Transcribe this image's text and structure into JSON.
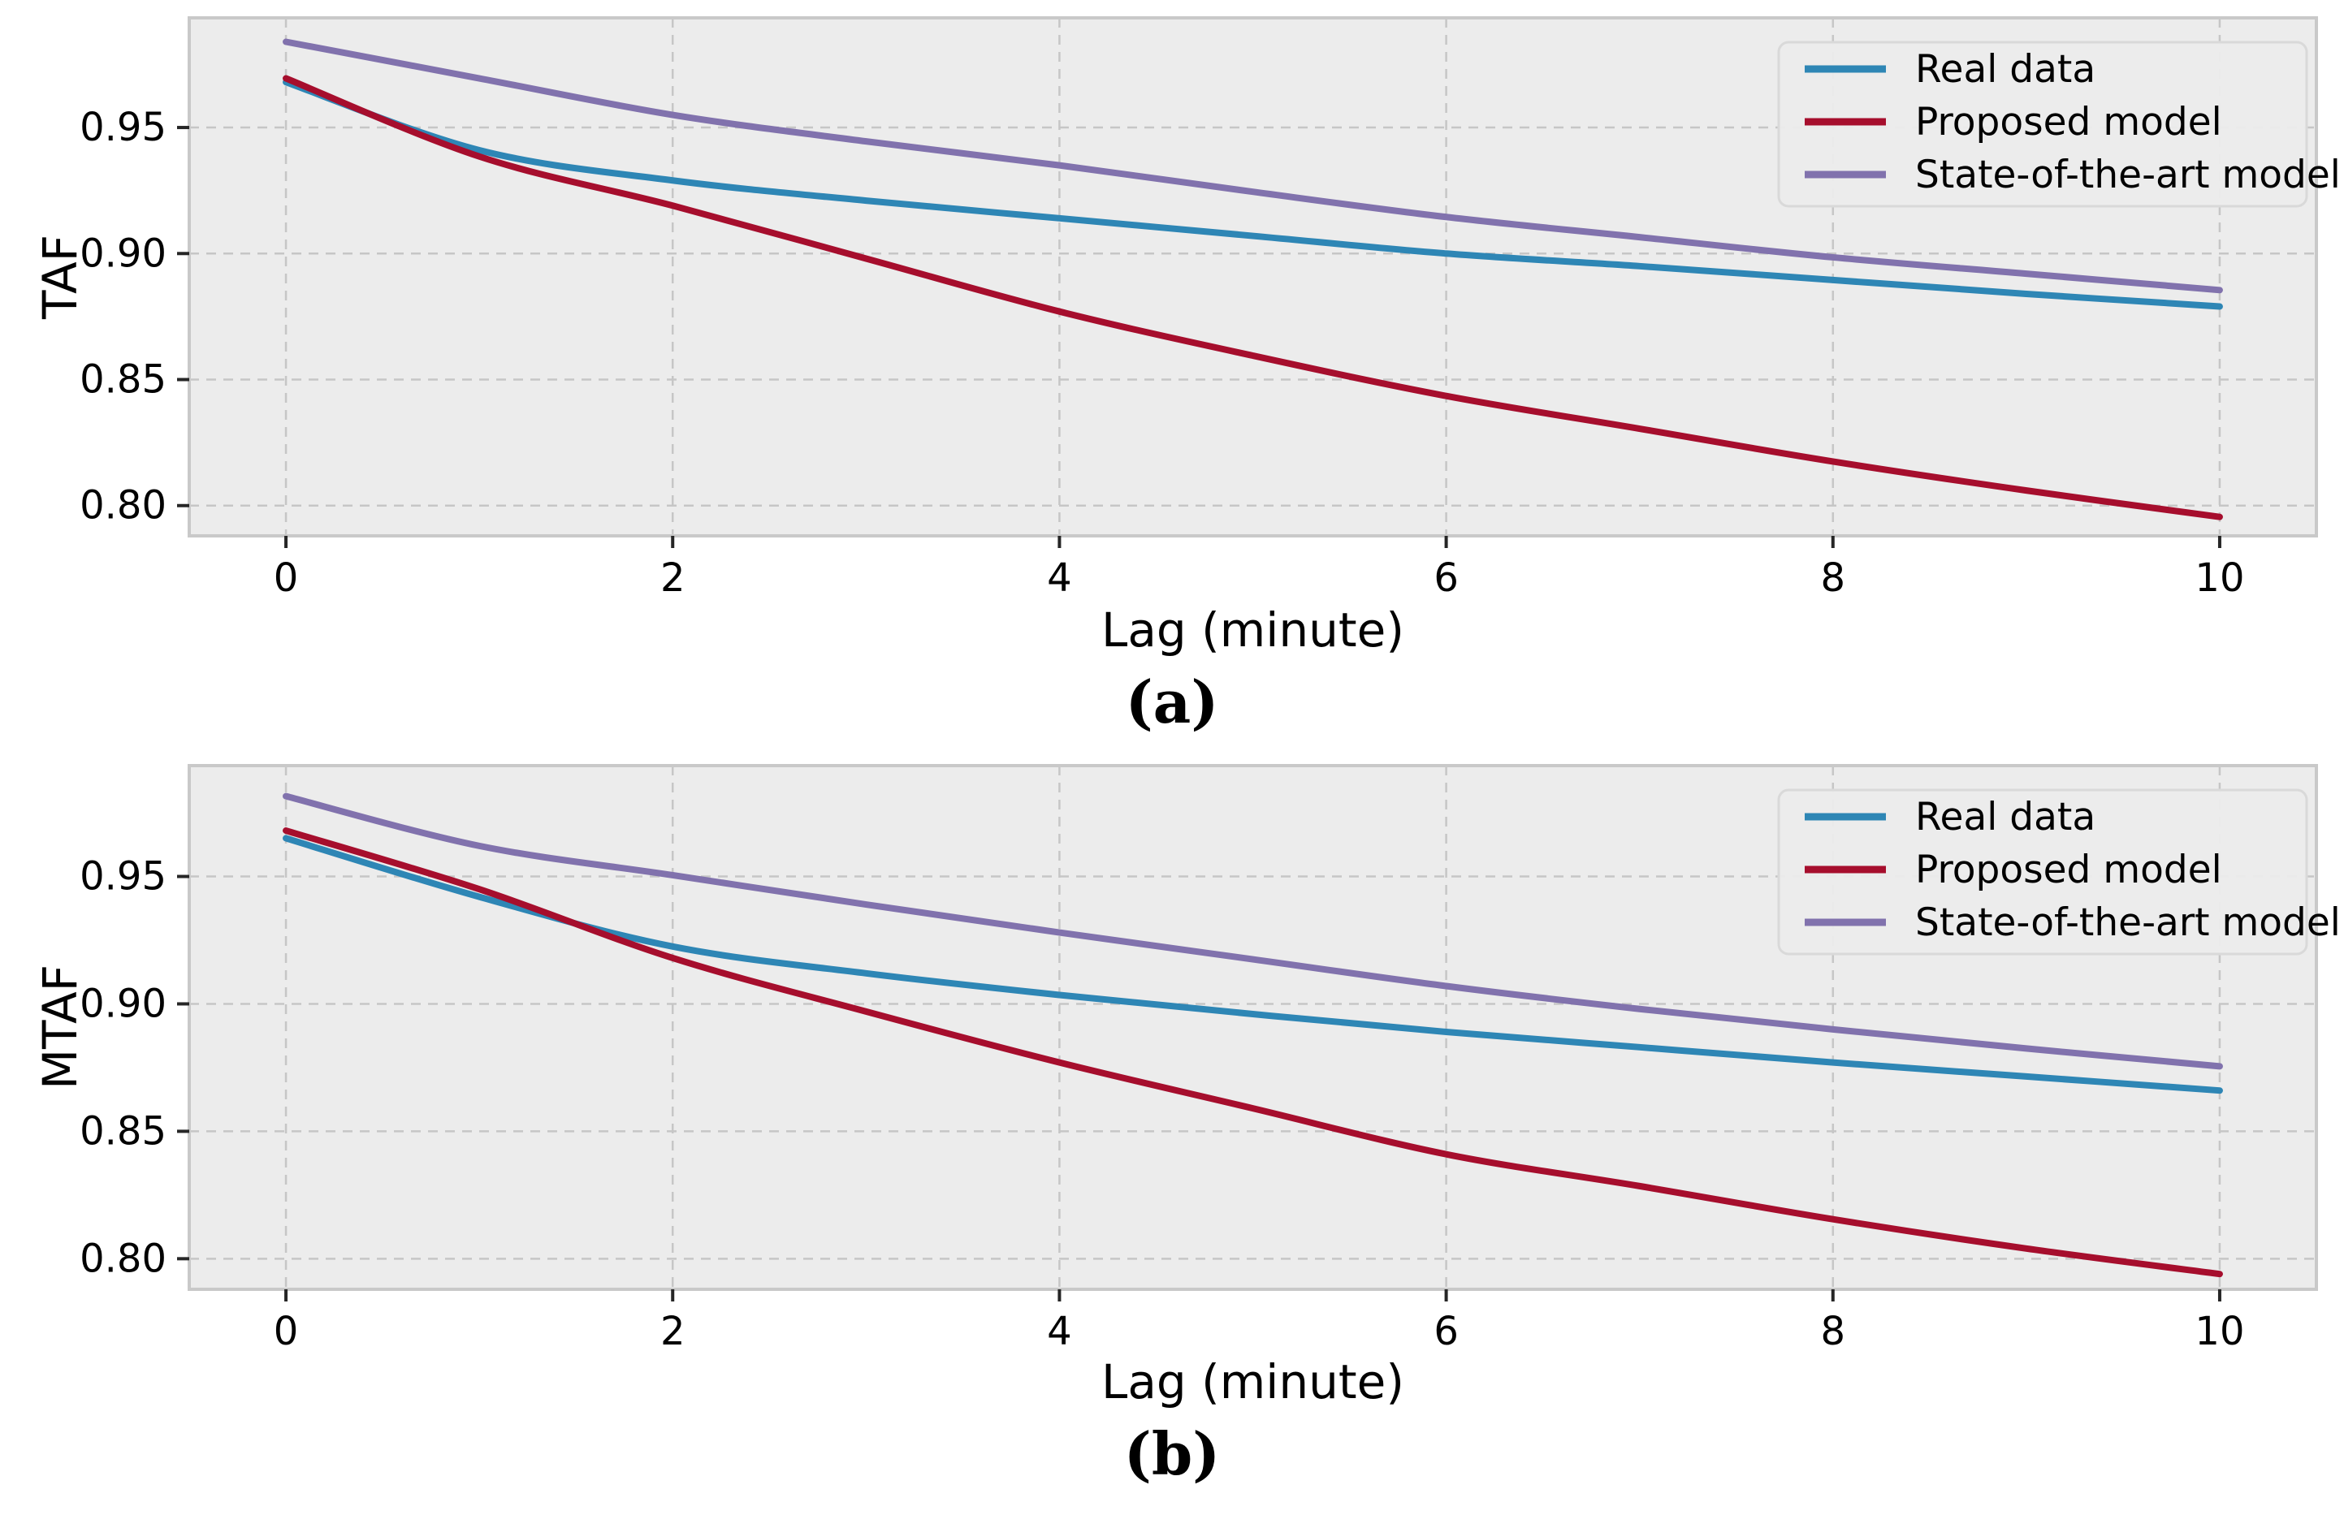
{
  "palette": {
    "real_data": "#2e86b5",
    "proposed_model": "#a60e2d",
    "sota_model": "#8172ad",
    "plot_bg": "#ececec",
    "grid_line": "#c6c6c6",
    "axes_border": "#c9c9c9",
    "tick_mark": "#262626",
    "legend_bg": "#ececec",
    "legend_border": "#d9d9d9",
    "text": "#000000"
  },
  "legend": {
    "items": [
      {
        "label": "Real data",
        "color_key": "real_data"
      },
      {
        "label": "Proposed model",
        "color_key": "proposed_model"
      },
      {
        "label": "State-of-the-art model",
        "color_key": "sota_model"
      }
    ],
    "position": "upper right"
  },
  "chart_data": [
    {
      "type": "line",
      "caption": "(a)",
      "xlabel": "Lag (minute)",
      "ylabel": "TAF",
      "x": [
        0,
        1,
        2,
        3,
        4,
        5,
        6,
        7,
        8,
        9,
        10
      ],
      "series": [
        {
          "name": "Real data",
          "color_key": "real_data",
          "values": [
            0.968,
            0.941,
            0.929,
            0.921,
            0.914,
            0.907,
            0.9,
            0.895,
            0.8895,
            0.884,
            0.879
          ]
        },
        {
          "name": "Proposed model",
          "color_key": "proposed_model",
          "values": [
            0.9695,
            0.9385,
            0.919,
            0.898,
            0.877,
            0.8595,
            0.8435,
            0.8305,
            0.8175,
            0.806,
            0.7955
          ]
        },
        {
          "name": "State-of-the-art model",
          "color_key": "sota_model",
          "values": [
            0.984,
            0.9695,
            0.955,
            0.9445,
            0.935,
            0.9245,
            0.9145,
            0.9065,
            0.8985,
            0.892,
            0.8855
          ]
        }
      ],
      "xticks": [
        {
          "v": 0,
          "label": "0"
        },
        {
          "v": 2,
          "label": "2"
        },
        {
          "v": 4,
          "label": "4"
        },
        {
          "v": 6,
          "label": "6"
        },
        {
          "v": 8,
          "label": "8"
        },
        {
          "v": 10,
          "label": "10"
        }
      ],
      "yticks": [
        {
          "v": 0.95,
          "label": "0.95"
        },
        {
          "v": 0.9,
          "label": "0.90"
        },
        {
          "v": 0.85,
          "label": "0.85"
        },
        {
          "v": 0.8,
          "label": "0.80"
        }
      ],
      "xlim": [
        -0.5,
        10.5
      ],
      "ylim": [
        0.788,
        0.9935
      ],
      "grid": true,
      "legend_position": "upper right"
    },
    {
      "type": "line",
      "caption": "(b)",
      "xlabel": "Lag (minute)",
      "ylabel": "MTAF",
      "x": [
        0,
        1,
        2,
        3,
        4,
        5,
        6,
        7,
        8,
        9,
        10
      ],
      "series": [
        {
          "name": "Real data",
          "color_key": "real_data",
          "values": [
            0.965,
            0.942,
            0.9225,
            0.912,
            0.9035,
            0.896,
            0.889,
            0.883,
            0.877,
            0.8715,
            0.866
          ]
        },
        {
          "name": "Proposed model",
          "color_key": "proposed_model",
          "values": [
            0.968,
            0.945,
            0.918,
            0.897,
            0.877,
            0.859,
            0.841,
            0.8285,
            0.8155,
            0.804,
            0.794
          ]
        },
        {
          "name": "State-of-the-art model",
          "color_key": "sota_model",
          "values": [
            0.9815,
            0.962,
            0.9505,
            0.939,
            0.928,
            0.9175,
            0.907,
            0.898,
            0.89,
            0.8825,
            0.8755
          ]
        }
      ],
      "xticks": [
        {
          "v": 0,
          "label": "0"
        },
        {
          "v": 2,
          "label": "2"
        },
        {
          "v": 4,
          "label": "4"
        },
        {
          "v": 6,
          "label": "6"
        },
        {
          "v": 8,
          "label": "8"
        },
        {
          "v": 10,
          "label": "10"
        }
      ],
      "yticks": [
        {
          "v": 0.95,
          "label": "0.95"
        },
        {
          "v": 0.9,
          "label": "0.90"
        },
        {
          "v": 0.85,
          "label": "0.85"
        },
        {
          "v": 0.8,
          "label": "0.80"
        }
      ],
      "xlim": [
        -0.5,
        10.5
      ],
      "ylim": [
        0.788,
        0.9935
      ],
      "grid": true,
      "legend_position": "upper right"
    }
  ]
}
